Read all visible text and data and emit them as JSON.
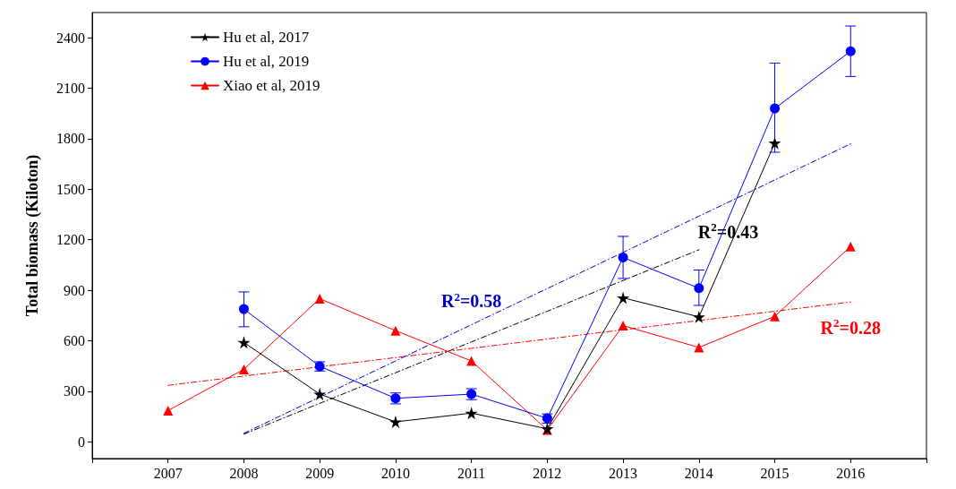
{
  "chart_data": {
    "type": "line",
    "ylabel": "Total biomass (Kiloton)",
    "categories": [
      "2007",
      "2008",
      "2009",
      "2010",
      "2011",
      "2012",
      "2013",
      "2014",
      "2015",
      "2016"
    ],
    "ylim": [
      -100,
      2550
    ],
    "yticks": [
      0,
      300,
      600,
      900,
      1200,
      1500,
      1800,
      2100,
      2400
    ],
    "legend": "top left",
    "grid": false,
    "series": [
      {
        "name": "Hu et al, 2017",
        "color": "#000000",
        "marker": "star",
        "values": [
          null,
          590,
          283,
          118,
          170,
          77,
          855,
          742,
          1775,
          null
        ]
      },
      {
        "name": "Hu et al, 2019",
        "color": "#0000ff",
        "marker": "circle",
        "values": [
          null,
          788,
          448,
          258,
          283,
          139,
          1095,
          912,
          1980,
          2320
        ],
        "errors": [
          null,
          [
            683,
            890
          ],
          [
            420,
            475
          ],
          [
            225,
            290
          ],
          [
            250,
            315
          ],
          [
            110,
            165
          ],
          [
            970,
            1220
          ],
          [
            810,
            1020
          ],
          [
            1720,
            2250
          ],
          [
            2170,
            2470
          ]
        ]
      },
      {
        "name": "Xiao et al, 2019",
        "color": "#ff0000",
        "marker": "triangle",
        "values": [
          185,
          430,
          850,
          660,
          480,
          70,
          690,
          560,
          745,
          1160
        ]
      },
      {
        "type": "line",
        "name": "R$^{2}$=0.58",
        "color": "#0000cc",
        "marker": "none",
        "line_style": "dashed",
        "values": [
          null,
          50,
          265,
          480,
          695,
          910,
          1125,
          1340,
          1555,
          1770
        ]
      },
      {
        "type": "line",
        "name": "R$^{2}$=0.43",
        "color": "#000000",
        "marker": "none",
        "line_style": "dashed",
        "values": [
          null,
          45,
          228,
          410,
          593,
          775,
          958,
          1140,
          null,
          null
        ]
      },
      {
        "type": "line",
        "name": "R$^{2}$=0.28",
        "color": "#ff0000",
        "marker": "none",
        "line_style": "dashed",
        "values": [
          335,
          390,
          445,
          500,
          555,
          610,
          665,
          720,
          775,
          830
        ]
      }
    ]
  }
}
